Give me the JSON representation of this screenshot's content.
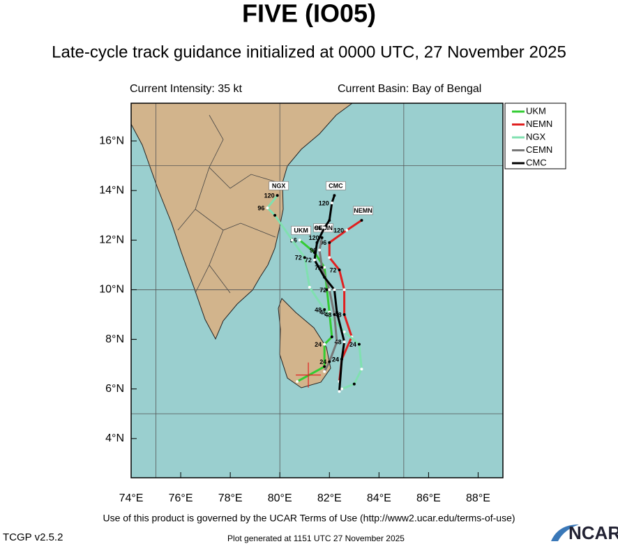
{
  "chart_data": {
    "type": "track_map",
    "title": "FIVE (IO05)",
    "subtitle": "Late-cycle track guidance initialized at 0000 UTC, 27 November 2025",
    "intensity": "Current Intensity: 35 kt",
    "basin": "Current Basin: Bay of Bengal",
    "terms": "Use of this product is governed by the UCAR Terms of Use (http://www2.ucar.edu/terms-of-use)",
    "version": "TCGP v2.5.2",
    "generated": "Plot generated at 1151 UTC   27 November 2025",
    "logo": "NCAR",
    "xlim": [
      74,
      89
    ],
    "ylim": [
      2.42,
      17.52
    ],
    "xticks": [
      {
        "value": 74,
        "label": "74°E"
      },
      {
        "value": 76,
        "label": "76°E"
      },
      {
        "value": 78,
        "label": "78°E"
      },
      {
        "value": 80,
        "label": "80°E"
      },
      {
        "value": 82,
        "label": "82°E"
      },
      {
        "value": 84,
        "label": "84°E"
      },
      {
        "value": 86,
        "label": "86°E"
      },
      {
        "value": 88,
        "label": "88°E"
      }
    ],
    "yticks": [
      {
        "value": 4,
        "label": "4°N"
      },
      {
        "value": 6,
        "label": "6°N"
      },
      {
        "value": 8,
        "label": "8°N"
      },
      {
        "value": 10,
        "label": "10°N"
      },
      {
        "value": 12,
        "label": "12°N"
      },
      {
        "value": 14,
        "label": "14°N"
      },
      {
        "value": 16,
        "label": "16°N"
      }
    ],
    "xgrid": [
      75,
      80,
      85
    ],
    "ygrid": [
      5,
      10,
      15
    ],
    "current_position": {
      "lon": 81.15,
      "lat": 6.56,
      "color": "#e02020"
    },
    "legend": "upper right",
    "series": [
      {
        "name": "UKM",
        "color": "#33cc33",
        "lon": [
          80.7,
          81.8,
          81.8,
          82.1,
          82.0,
          81.9,
          81.8,
          81.4,
          80.8
        ],
        "lat": [
          6.3,
          6.9,
          7.8,
          8.1,
          9.1,
          10.0,
          10.9,
          11.5,
          12.0
        ],
        "hour_labels": [
          null,
          null,
          24,
          null,
          48,
          null,
          72,
          null,
          96
        ]
      },
      {
        "name": "NEMN",
        "color": "#e02020",
        "lon": [
          82.4,
          82.5,
          82.9,
          82.6,
          82.6,
          82.4,
          82.0,
          82.0,
          82.7,
          83.3
        ],
        "lat": [
          6.3,
          7.2,
          8.1,
          9.0,
          10.0,
          10.8,
          11.3,
          11.9,
          12.4,
          12.8
        ],
        "hour_labels": [
          null,
          24,
          null,
          48,
          null,
          72,
          null,
          96,
          120,
          null
        ]
      },
      {
        "name": "NGX",
        "color": "#80e0b0",
        "lon": [
          82.5,
          83.0,
          83.3,
          83.2,
          82.6,
          81.8,
          81.2,
          81.0,
          80.5,
          79.8,
          79.5,
          79.9
        ],
        "lat": [
          6.0,
          6.2,
          6.8,
          7.8,
          8.3,
          9.2,
          10.1,
          11.3,
          12.0,
          13.0,
          13.3,
          13.8
        ],
        "hour_labels": [
          null,
          null,
          null,
          24,
          null,
          48,
          null,
          72,
          null,
          null,
          96,
          120
        ]
      },
      {
        "name": "CEMN",
        "color": "#777777",
        "lon": [
          81.8,
          82.0,
          82.3,
          82.2,
          82.0,
          81.7,
          81.6,
          81.7
        ],
        "lat": [
          6.7,
          7.1,
          7.9,
          9.0,
          10.0,
          10.9,
          11.6,
          12.1
        ],
        "hour_labels": [
          null,
          24,
          null,
          48,
          72,
          null,
          96,
          120
        ]
      },
      {
        "name": "CMC",
        "color": "#000000",
        "lon": [
          82.4,
          82.5,
          82.6,
          82.3,
          82.2,
          81.8,
          81.4,
          81.5,
          81.8,
          82.0,
          82.1,
          82.2
        ],
        "lat": [
          5.9,
          7.2,
          7.9,
          9.1,
          10.0,
          10.5,
          11.2,
          11.9,
          12.5,
          12.8,
          13.5,
          13.8
        ],
        "hour_labels": [
          null,
          24,
          48,
          null,
          null,
          null,
          72,
          null,
          96,
          null,
          120,
          null
        ]
      }
    ]
  }
}
